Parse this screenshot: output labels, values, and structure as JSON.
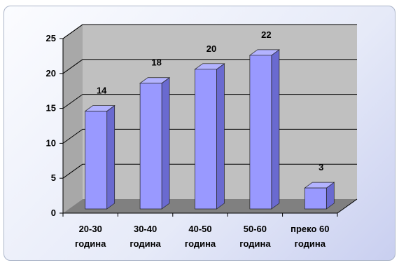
{
  "chart_data": {
    "type": "bar",
    "categories": [
      [
        "20-30",
        "година"
      ],
      [
        "30-40",
        "година"
      ],
      [
        "40-50",
        "година"
      ],
      [
        "50-60",
        "година"
      ],
      [
        "преко 60",
        "година"
      ]
    ],
    "values": [
      14,
      18,
      20,
      22,
      3
    ],
    "data_labels": [
      "14",
      "18",
      "20",
      "22",
      "3"
    ],
    "y_ticks": [
      "0",
      "5",
      "10",
      "15",
      "20",
      "25"
    ],
    "ylim": [
      0,
      25
    ],
    "grid": true,
    "three_d": true,
    "colors": {
      "bar_front": "#9999ff",
      "bar_top": "#b3b3ff",
      "bar_side": "#6a6ad0",
      "back_wall": "#c0c0c0",
      "floor": "#808080",
      "grid": "#000000"
    }
  }
}
